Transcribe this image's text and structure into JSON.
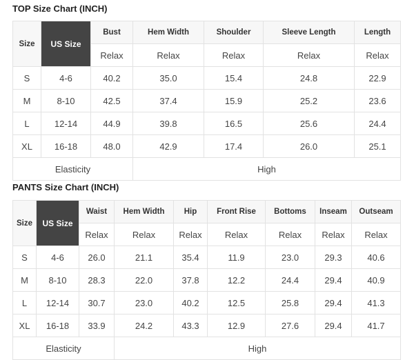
{
  "top": {
    "title": "TOP Size Chart (INCH)",
    "size_header": "Size",
    "us_header": "US Size",
    "columns": [
      "Bust",
      "Hem Width",
      "Shoulder",
      "Sleeve Length",
      "Length"
    ],
    "sub_label": "Relax",
    "rows": [
      {
        "size": "S",
        "us": "4-6",
        "values": [
          "40.2",
          "35.0",
          "15.4",
          "24.8",
          "22.9"
        ]
      },
      {
        "size": "M",
        "us": "8-10",
        "values": [
          "42.5",
          "37.4",
          "15.9",
          "25.2",
          "23.6"
        ]
      },
      {
        "size": "L",
        "us": "12-14",
        "values": [
          "44.9",
          "39.8",
          "16.5",
          "25.6",
          "24.4"
        ]
      },
      {
        "size": "XL",
        "us": "16-18",
        "values": [
          "48.0",
          "42.9",
          "17.4",
          "26.0",
          "25.1"
        ]
      }
    ],
    "elasticity_label": "Elasticity",
    "elasticity_value": "High"
  },
  "pants": {
    "title": "PANTS Size Chart (INCH)",
    "size_header": "Size",
    "us_header": "US Size",
    "columns": [
      "Waist",
      "Hem Width",
      "Hip",
      "Front Rise",
      "Bottoms",
      "Inseam",
      "Outseam"
    ],
    "sub_label": "Relax",
    "rows": [
      {
        "size": "S",
        "us": "4-6",
        "values": [
          "26.0",
          "21.1",
          "35.4",
          "11.9",
          "23.0",
          "29.3",
          "40.6"
        ]
      },
      {
        "size": "M",
        "us": "8-10",
        "values": [
          "28.3",
          "22.0",
          "37.8",
          "12.2",
          "24.4",
          "29.4",
          "40.9"
        ]
      },
      {
        "size": "L",
        "us": "12-14",
        "values": [
          "30.7",
          "23.0",
          "40.2",
          "12.5",
          "25.8",
          "29.4",
          "41.3"
        ]
      },
      {
        "size": "XL",
        "us": "16-18",
        "values": [
          "33.9",
          "24.2",
          "43.3",
          "12.9",
          "27.6",
          "29.4",
          "41.7"
        ]
      }
    ],
    "elasticity_label": "Elasticity",
    "elasticity_value": "High"
  }
}
